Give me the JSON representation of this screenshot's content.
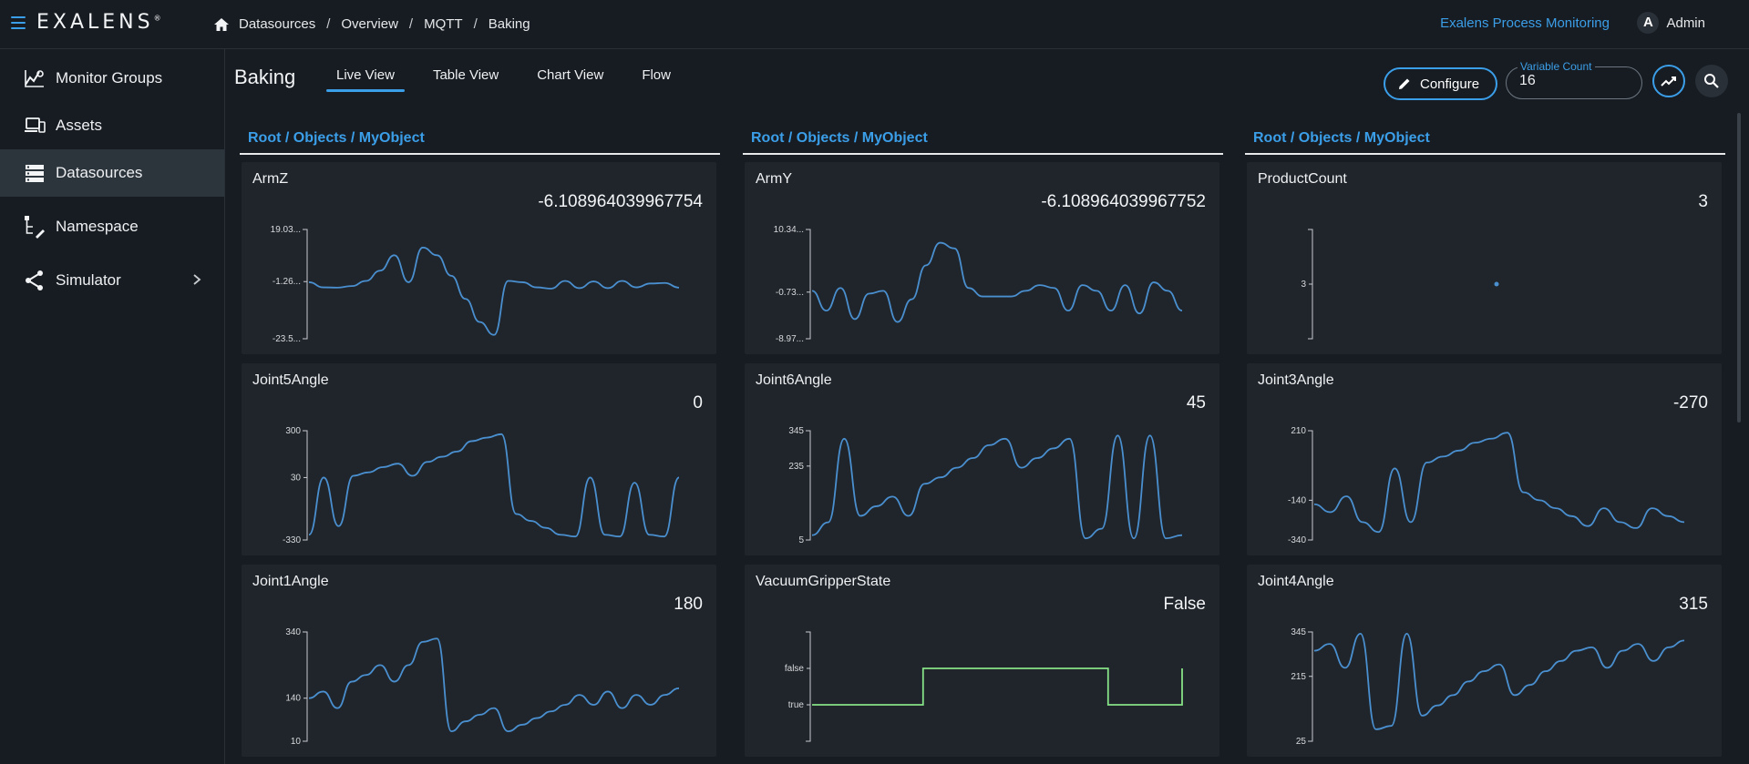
{
  "header": {
    "brand": "EXALENS",
    "brand_mark": "®",
    "breadcrumb": [
      "Datasources",
      "Overview",
      "MQTT",
      "Baking"
    ],
    "app_link": "Exalens Process Monitoring",
    "user_initial": "A",
    "user_name": "Admin",
    "accent_color": "#3b9ee8"
  },
  "sidebar": {
    "items": [
      {
        "label": "Monitor Groups",
        "icon": "monitor-groups-icon"
      },
      {
        "label": "Assets",
        "icon": "assets-icon"
      },
      {
        "label": "Datasources",
        "icon": "datasources-icon",
        "active": true
      },
      {
        "label": "Namespace",
        "icon": "namespace-icon"
      },
      {
        "label": "Simulator",
        "icon": "simulator-icon",
        "expandable": true
      }
    ]
  },
  "page": {
    "title": "Baking",
    "tabs": [
      "Live View",
      "Table View",
      "Chart View",
      "Flow"
    ],
    "active_tab": "Live View",
    "configure_label": "Configure",
    "variable_count_label": "Variable Count",
    "variable_count_value": "16"
  },
  "columns": [
    {
      "path": "Root / Objects / MyObject",
      "cards": [
        {
          "title": "ArmZ",
          "value": "-6.108964039967754",
          "kind": "line",
          "ymin": -23.5,
          "ymax": 19.03,
          "ticks": [
            "19.03...",
            "-1.26...",
            "-23.5..."
          ],
          "series": [
            -1.5,
            -3.5,
            -3.6,
            -3,
            -1,
            3,
            9,
            -1.5,
            12,
            9,
            1,
            -8,
            -17,
            -22,
            -1,
            -1.5,
            -3.5,
            -4,
            -1,
            -3.8,
            -1.2,
            -3.8,
            -1,
            -3.5,
            -2,
            -1.8,
            -3.6
          ]
        },
        {
          "title": "Joint5Angle",
          "value": "0",
          "kind": "line",
          "ymin": -330,
          "ymax": 300,
          "ticks": [
            "300",
            "30",
            "-330"
          ],
          "series": [
            -300,
            30,
            -250,
            40,
            60,
            90,
            110,
            40,
            120,
            150,
            180,
            240,
            260,
            280,
            -180,
            -220,
            -260,
            -300,
            -310,
            30,
            -300,
            -310,
            0,
            -300,
            -310,
            30
          ]
        },
        {
          "title": "Joint1Angle",
          "value": "180",
          "kind": "line",
          "ymin": 10,
          "ymax": 340,
          "ticks": [
            "340",
            "140",
            "10"
          ],
          "series": [
            140,
            160,
            110,
            190,
            210,
            240,
            190,
            240,
            310,
            320,
            40,
            70,
            90,
            110,
            40,
            60,
            80,
            100,
            120,
            150,
            120,
            160,
            110,
            150,
            120,
            150,
            170
          ]
        }
      ]
    },
    {
      "path": "Root / Objects / MyObject",
      "cards": [
        {
          "title": "ArmY",
          "value": "-6.108964039967752",
          "kind": "line",
          "ymin": -8.97,
          "ymax": 10.34,
          "ticks": [
            "10.34...",
            "-0.73...",
            "-8.97..."
          ],
          "series": [
            -0.5,
            -4,
            0,
            -5.5,
            -1,
            -0.5,
            -6,
            -2,
            4,
            8,
            7,
            0,
            -1.5,
            -1.5,
            -1.5,
            -0.5,
            0.5,
            0,
            -4,
            0.5,
            -0.5,
            -4,
            0.5,
            -4.5,
            1,
            -0.5,
            -4
          ]
        },
        {
          "title": "Joint6Angle",
          "value": "45",
          "kind": "line",
          "ymin": 5,
          "ymax": 345,
          "ticks": [
            "345",
            "235",
            "5"
          ],
          "series": [
            20,
            60,
            320,
            80,
            110,
            140,
            80,
            180,
            200,
            230,
            260,
            300,
            320,
            230,
            260,
            290,
            320,
            10,
            40,
            330,
            10,
            330,
            10,
            20
          ]
        },
        {
          "title": "VacuumGripperState",
          "value": "False",
          "kind": "step",
          "ticks": [
            "false",
            "true"
          ],
          "series": [
            0,
            0,
            0,
            1,
            1,
            1,
            1,
            1,
            0,
            0,
            1
          ]
        }
      ]
    },
    {
      "path": "Root / Objects / MyObject",
      "cards": [
        {
          "title": "ProductCount",
          "value": "3",
          "kind": "point",
          "ymin": 2,
          "ymax": 4,
          "ticks": [
            "3"
          ],
          "series": [
            3
          ]
        },
        {
          "title": "Joint3Angle",
          "value": "-270",
          "kind": "line",
          "ymin": -340,
          "ymax": 210,
          "ticks": [
            "210",
            "-140",
            "-340"
          ],
          "series": [
            -160,
            -200,
            -120,
            -250,
            -300,
            20,
            -250,
            50,
            80,
            110,
            150,
            170,
            200,
            -100,
            -140,
            -180,
            -220,
            -270,
            -180,
            -250,
            -280,
            -180,
            -220,
            -250
          ]
        },
        {
          "title": "Joint4Angle",
          "value": "315",
          "kind": "line",
          "ymin": 25,
          "ymax": 345,
          "ticks": [
            "345",
            "215",
            "25"
          ],
          "series": [
            290,
            310,
            240,
            340,
            60,
            70,
            340,
            100,
            130,
            160,
            200,
            230,
            250,
            160,
            190,
            230,
            260,
            290,
            300,
            240,
            290,
            310,
            260,
            300,
            320
          ]
        }
      ]
    }
  ]
}
